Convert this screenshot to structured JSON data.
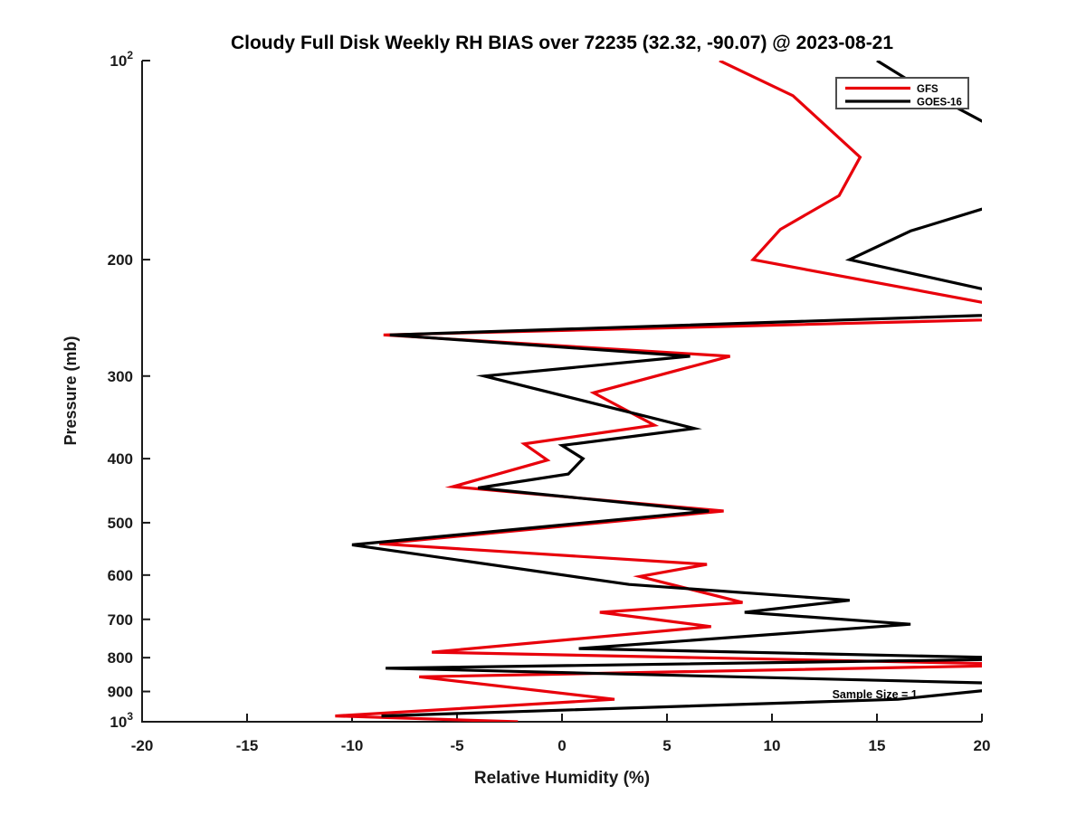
{
  "chart_data": {
    "type": "line",
    "title": "Cloudy Full Disk Weekly RH BIAS over 72235 (32.32, -90.07) @ 2023-08-21",
    "xlabel": "Relative Humidity (%)",
    "ylabel": "Pressure (mb)",
    "xlim": [
      -20,
      20
    ],
    "ylim": [
      100,
      1000
    ],
    "y_scale": "log10-inverted",
    "grid": false,
    "legend_position": "top-right",
    "x_ticks": [
      "-20",
      "-15",
      "-10",
      "-5",
      "0",
      "5",
      "10",
      "15",
      "20"
    ],
    "y_ticks": [
      {
        "v": 100,
        "base": "10",
        "exp": "2"
      },
      {
        "v": 200,
        "label": "200"
      },
      {
        "v": 300,
        "label": "300"
      },
      {
        "v": 400,
        "label": "400"
      },
      {
        "v": 500,
        "label": "500"
      },
      {
        "v": 600,
        "label": "600"
      },
      {
        "v": 700,
        "label": "700"
      },
      {
        "v": 800,
        "label": "800"
      },
      {
        "v": 900,
        "label": "900"
      },
      {
        "v": 1000,
        "base": "10",
        "exp": "3"
      }
    ],
    "annotation": {
      "text": "Sample Size = 1",
      "rh": 14.9,
      "p": 910
    },
    "series": [
      {
        "name": "GFS",
        "color": "#e8000b",
        "points_rh_p": [
          [
            7.5,
            100
          ],
          [
            11.0,
            113
          ],
          [
            14.2,
            140
          ],
          [
            13.2,
            160
          ],
          [
            10.4,
            180
          ],
          [
            9.1,
            200
          ],
          [
            24,
            245
          ],
          [
            -8.5,
            260
          ],
          [
            8.0,
            280
          ],
          [
            1.5,
            318
          ],
          [
            4.4,
            356
          ],
          [
            -1.8,
            380
          ],
          [
            -0.7,
            402
          ],
          [
            -5.2,
            441
          ],
          [
            7.7,
            480
          ],
          [
            -8.7,
            538
          ],
          [
            6.9,
            578
          ],
          [
            3.7,
            603
          ],
          [
            8.6,
            660
          ],
          [
            1.8,
            683
          ],
          [
            7.1,
            718
          ],
          [
            -6.2,
            785
          ],
          [
            23,
            820
          ],
          [
            -6.8,
            855
          ],
          [
            2.5,
            925
          ],
          [
            -10.8,
            980
          ],
          [
            -2.1,
            1000
          ]
        ]
      },
      {
        "name": "GOES-16",
        "color": "#000000",
        "points_rh_p": [
          [
            15.0,
            100
          ],
          [
            17.5,
            112
          ],
          [
            25,
            150
          ],
          [
            16.6,
            181
          ],
          [
            13.7,
            200
          ],
          [
            25,
            240
          ],
          [
            -8.2,
            260
          ],
          [
            6.1,
            280
          ],
          [
            -3.7,
            300
          ],
          [
            6.3,
            360
          ],
          [
            0.0,
            382
          ],
          [
            1.0,
            400
          ],
          [
            0.3,
            422
          ],
          [
            -4.0,
            443
          ],
          [
            7.0,
            480
          ],
          [
            -10.0,
            540
          ],
          [
            3.2,
            620
          ],
          [
            13.7,
            655
          ],
          [
            8.7,
            683
          ],
          [
            16.6,
            712
          ],
          [
            0.8,
            775
          ],
          [
            23,
            803
          ],
          [
            -8.4,
            830
          ],
          [
            23,
            878
          ],
          [
            16.0,
            925
          ],
          [
            -8.6,
            980
          ]
        ]
      }
    ]
  },
  "legend": {
    "items": [
      {
        "label": "GFS",
        "color": "#e8000b"
      },
      {
        "label": "GOES-16",
        "color": "#000000"
      }
    ]
  },
  "colors": {
    "axis": "#1a1a1a",
    "legend_border": "#4d4d4d",
    "background": "#ffffff"
  }
}
